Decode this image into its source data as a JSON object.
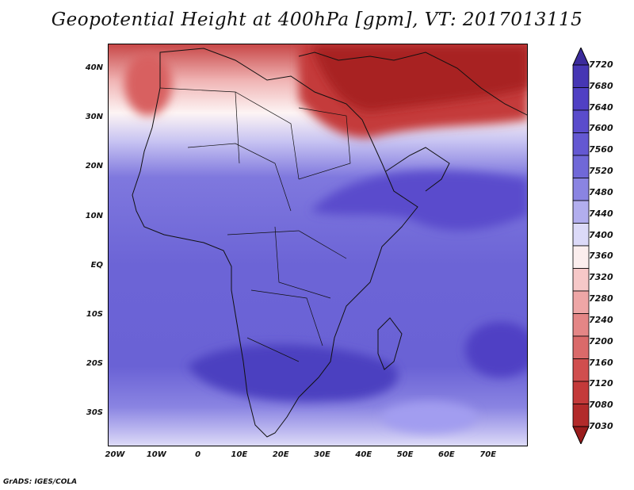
{
  "title": "Geopotential Height at 400hPa [gpm], VT: 2017013115",
  "credit": "GrADS: IGES/COLA",
  "map": {
    "lat_ticks": [
      "40N",
      "30N",
      "20N",
      "10N",
      "EQ",
      "10S",
      "20S",
      "30S"
    ],
    "lon_ticks": [
      "20W",
      "10W",
      "0",
      "10E",
      "20E",
      "30E",
      "40E",
      "50E",
      "60E",
      "70E"
    ]
  },
  "colorbar": {
    "levels": [
      "7720",
      "7680",
      "7640",
      "7600",
      "7560",
      "7520",
      "7480",
      "7440",
      "7400",
      "7360",
      "7320",
      "7280",
      "7240",
      "7200",
      "7160",
      "7120",
      "7080",
      "7030"
    ],
    "colors": [
      "#3b2b9c",
      "#4636b4",
      "#5040c4",
      "#5a4ccc",
      "#6458d2",
      "#7068d8",
      "#8a84e2",
      "#b2aeee",
      "#dcdaf8",
      "#fbeeee",
      "#f6c8c8",
      "#eea6a6",
      "#e48686",
      "#da6a6a",
      "#d04e4e",
      "#c43a3a",
      "#b22a2a",
      "#9a1c1c"
    ]
  }
}
